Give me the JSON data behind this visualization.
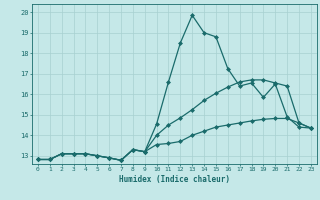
{
  "title": "",
  "xlabel": "Humidex (Indice chaleur)",
  "xlim": [
    -0.5,
    23.5
  ],
  "ylim": [
    12.6,
    20.4
  ],
  "xticks": [
    0,
    1,
    2,
    3,
    4,
    5,
    6,
    7,
    8,
    9,
    10,
    11,
    12,
    13,
    14,
    15,
    16,
    17,
    18,
    19,
    20,
    21,
    22,
    23
  ],
  "yticks": [
    13,
    14,
    15,
    16,
    17,
    18,
    19,
    20
  ],
  "bg_color": "#c5e8e8",
  "line_color": "#1a6b6b",
  "grid_color": "#a8d0d0",
  "line1_y": [
    12.82,
    12.82,
    13.1,
    13.1,
    13.1,
    13.0,
    12.9,
    12.78,
    13.3,
    13.2,
    14.55,
    16.6,
    18.5,
    19.85,
    19.0,
    18.8,
    17.25,
    16.4,
    16.55,
    15.85,
    16.5,
    14.9,
    14.4,
    14.35
  ],
  "line2_y": [
    12.82,
    12.82,
    13.1,
    13.1,
    13.1,
    13.0,
    12.9,
    12.78,
    13.3,
    13.2,
    14.0,
    14.5,
    14.85,
    15.25,
    15.7,
    16.05,
    16.35,
    16.6,
    16.7,
    16.7,
    16.55,
    16.4,
    14.6,
    14.35
  ],
  "line3_y": [
    12.82,
    12.82,
    13.1,
    13.1,
    13.1,
    13.0,
    12.9,
    12.78,
    13.3,
    13.2,
    13.55,
    13.6,
    13.7,
    14.0,
    14.2,
    14.4,
    14.5,
    14.6,
    14.7,
    14.78,
    14.82,
    14.82,
    14.6,
    14.35
  ],
  "marker": "D",
  "markersize": 2.0,
  "linewidth": 0.9
}
